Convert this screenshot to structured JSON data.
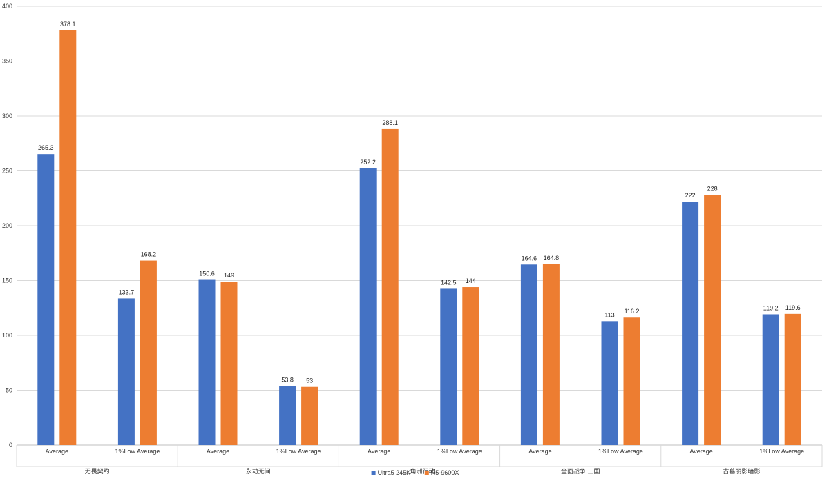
{
  "chart_data": {
    "type": "bar",
    "title": "",
    "xlabel": "",
    "ylabel": "",
    "ylim": [
      0,
      400
    ],
    "yticks": [
      0,
      50,
      100,
      150,
      200,
      250,
      300,
      350,
      400
    ],
    "grid": true,
    "legend_position": "bottom",
    "groups": [
      {
        "name": "无畏契约",
        "subcategories": [
          "Average",
          "1%Low Average"
        ]
      },
      {
        "name": "永劫无间",
        "subcategories": [
          "Average",
          "1%Low Average"
        ]
      },
      {
        "name": "三角洲行动",
        "subcategories": [
          "Average",
          "1%Low Average"
        ]
      },
      {
        "name": "全面战争 三国",
        "subcategories": [
          "Average",
          "1%Low Average"
        ]
      },
      {
        "name": "古墓丽影暗影",
        "subcategories": [
          "Average",
          "1%Low Average"
        ]
      }
    ],
    "series": [
      {
        "name": "Ultra5 245K",
        "color": "#4472c4",
        "values": [
          265.3,
          133.7,
          150.6,
          53.8,
          252.2,
          142.5,
          164.6,
          113,
          222,
          119.2
        ]
      },
      {
        "name": "R5-9600X",
        "color": "#ed7d31",
        "values": [
          378.1,
          168.2,
          149,
          53,
          288.1,
          144,
          164.8,
          116.2,
          228,
          119.6
        ]
      }
    ]
  }
}
